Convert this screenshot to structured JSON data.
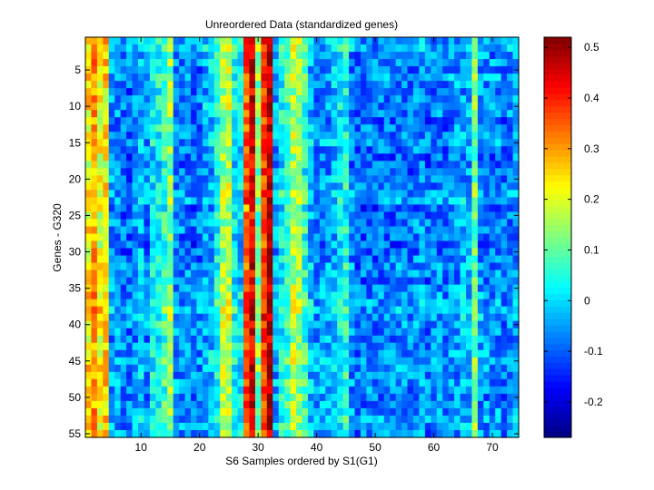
{
  "chart_data": [
    {
      "type": "heatmap",
      "title": "Unreordered Data (standardized genes)",
      "xlabel": "S6 Samples ordered by S1(G1)",
      "ylabel": "Genes - G320",
      "n_cols": 74,
      "n_rows": 55,
      "xlim": [
        0.5,
        74.5
      ],
      "ylim": [
        0.5,
        55.5
      ],
      "xticks": [
        10,
        20,
        30,
        40,
        50,
        60,
        70
      ],
      "yticks": [
        5,
        10,
        15,
        20,
        25,
        30,
        35,
        40,
        45,
        50,
        55
      ],
      "colormap": "jet",
      "value_range": [
        -0.27,
        0.52
      ],
      "column_means": [
        0.24,
        0.3,
        0.22,
        0.24,
        -0.05,
        -0.05,
        -0.07,
        -0.08,
        -0.05,
        -0.02,
        -0.06,
        0.02,
        0.04,
        0.07,
        0.14,
        -0.06,
        -0.07,
        -0.06,
        -0.08,
        -0.07,
        -0.03,
        -0.02,
        0.04,
        0.16,
        0.18,
        0.03,
        0.0,
        0.35,
        0.45,
        0.12,
        0.38,
        0.48,
        -0.04,
        0.04,
        0.07,
        0.17,
        0.14,
        0.06,
        -0.02,
        -0.06,
        -0.05,
        -0.04,
        -0.02,
        0.02,
        0.05,
        -0.06,
        -0.09,
        -0.08,
        -0.07,
        -0.08,
        -0.07,
        -0.06,
        -0.08,
        -0.06,
        -0.07,
        -0.07,
        -0.06,
        -0.05,
        -0.08,
        -0.07,
        -0.06,
        -0.08,
        -0.06,
        -0.05,
        -0.03,
        -0.03,
        0.12,
        -0.05,
        -0.06,
        -0.07,
        -0.06,
        -0.08,
        -0.06,
        -0.05
      ],
      "row_offsets": [
        0.02,
        0.03,
        0.0,
        0.01,
        -0.01,
        0.02,
        0.0,
        -0.02,
        -0.01,
        0.01,
        0.0,
        -0.02,
        -0.01,
        0.0,
        0.01,
        -0.01,
        -0.02,
        -0.03,
        -0.02,
        -0.01,
        0.0,
        0.01,
        0.02,
        -0.03,
        -0.02,
        -0.01,
        0.0,
        -0.02,
        -0.03,
        -0.02,
        -0.01,
        0.0,
        -0.01,
        -0.02,
        0.0,
        0.01,
        0.02,
        0.03,
        0.02,
        0.01,
        0.0,
        -0.01,
        0.0,
        0.01,
        0.02,
        0.01,
        0.0,
        0.01,
        0.0,
        -0.01,
        0.0,
        0.01,
        0.02,
        0.01,
        0.0
      ],
      "colorbar": {
        "ticks": [
          -0.2,
          -0.1,
          0,
          0.1,
          0.2,
          0.3,
          0.4,
          0.5
        ],
        "tick_labels": [
          "-0.2",
          "-0.1",
          "0",
          "0.1",
          "0.2",
          "0.3",
          "0.4",
          "0.5"
        ]
      }
    }
  ]
}
